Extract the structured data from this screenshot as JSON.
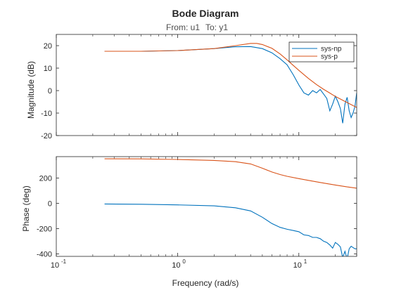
{
  "figure": {
    "title": "Bode Diagram",
    "from_label": "From: u1",
    "to_label": "To: y1",
    "xlabel": "Frequency (rad/s)"
  },
  "chart_data": [
    {
      "type": "line",
      "panel": "magnitude",
      "ylabel": "Magnitude (dB)",
      "xscale": "log",
      "xlim": [
        0.1,
        30
      ],
      "ylim": [
        -20,
        25
      ],
      "yticks": [
        20,
        10,
        0,
        -10,
        -20
      ],
      "legend": {
        "placement": "top-right",
        "entries": [
          "sys-np",
          "sys-p"
        ]
      },
      "series": [
        {
          "name": "sys-np",
          "color": "#0072BD",
          "x": [
            0.25,
            0.5,
            1.0,
            2.0,
            3.0,
            4.0,
            5.0,
            6.0,
            7.0,
            8.0,
            9.0,
            10.0,
            11.0,
            12.0,
            13.0,
            14.0,
            15.0,
            16.0,
            17.0,
            18.0,
            19.0,
            20.0,
            21.0,
            22.0,
            23.0,
            24.0,
            25.0,
            26.0,
            27.0,
            28.0,
            29.0,
            30.0
          ],
          "y": [
            17.5,
            17.5,
            17.8,
            18.7,
            19.5,
            19.6,
            18.7,
            16.8,
            14.2,
            11.5,
            7.0,
            2.5,
            -1.0,
            -2.0,
            0.0,
            -1.0,
            0.5,
            -1.5,
            -3.5,
            -9.0,
            -6.0,
            -2.5,
            -5.0,
            -8.0,
            -14.5,
            -6.0,
            -3.0,
            -9.0,
            -12.0,
            -10.0,
            -7.0,
            -1.0
          ]
        },
        {
          "name": "sys-p",
          "color": "#D95319",
          "x": [
            0.25,
            0.5,
            1.0,
            2.0,
            3.0,
            4.0,
            4.5,
            5.0,
            6.0,
            7.0,
            8.0,
            9.0,
            10.0,
            12.0,
            14.0,
            16.0,
            18.0,
            20.0,
            25.0,
            30.0
          ],
          "y": [
            17.5,
            17.5,
            17.8,
            18.7,
            20.0,
            21.0,
            21.0,
            20.5,
            18.8,
            16.3,
            13.7,
            11.2,
            9.0,
            5.4,
            2.7,
            0.6,
            -1.1,
            -2.6,
            -5.3,
            -7.5
          ]
        }
      ]
    },
    {
      "type": "line",
      "panel": "phase",
      "ylabel": "Phase (deg)",
      "xscale": "log",
      "xlim": [
        0.1,
        30
      ],
      "ylim": [
        -420,
        370
      ],
      "yticks": [
        200,
        0,
        -200,
        -400
      ],
      "xticks": [
        {
          "value": 0.1,
          "base": "10",
          "exp": "-1"
        },
        {
          "value": 1,
          "base": "10",
          "exp": "0"
        },
        {
          "value": 10,
          "base": "10",
          "exp": "1"
        }
      ],
      "series": [
        {
          "name": "sys-np",
          "color": "#0072BD",
          "x": [
            0.25,
            0.5,
            1.0,
            2.0,
            3.0,
            4.0,
            5.0,
            6.0,
            7.0,
            8.0,
            9.0,
            10.0,
            11.0,
            12.0,
            13.0,
            14.0,
            15.0,
            16.0,
            17.0,
            18.0,
            19.0,
            20.0,
            21.0,
            22.0,
            23.0,
            24.0,
            25.0,
            26.0,
            27.0,
            28.0,
            29.0,
            30.0
          ],
          "y": [
            -5,
            -7,
            -12,
            -20,
            -35,
            -60,
            -110,
            -160,
            -190,
            -205,
            -215,
            -225,
            -250,
            -255,
            -270,
            -270,
            -280,
            -300,
            -310,
            -330,
            -355,
            -310,
            -325,
            -345,
            -430,
            -380,
            -440,
            -360,
            -340,
            -350,
            -360,
            -360
          ]
        },
        {
          "name": "sys-p",
          "color": "#D95319",
          "x": [
            0.25,
            0.5,
            1.0,
            2.0,
            3.0,
            4.0,
            5.0,
            6.0,
            7.0,
            8.0,
            10.0,
            12.0,
            15.0,
            20.0,
            25.0,
            30.0
          ],
          "y": [
            353,
            352,
            348,
            340,
            330,
            312,
            278,
            248,
            228,
            214,
            196,
            182,
            165,
            145,
            130,
            120
          ]
        }
      ]
    }
  ]
}
